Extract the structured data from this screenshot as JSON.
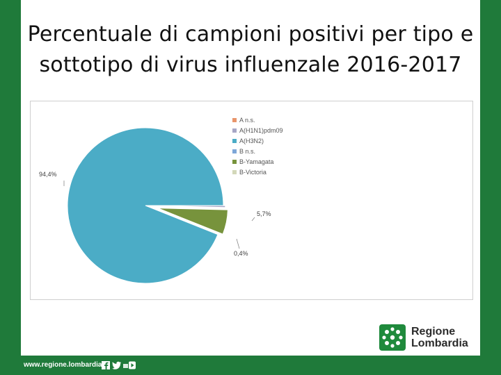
{
  "title_lines": [
    "Percentuale di campioni positivi per tipo e",
    "sottotipo di virus influenzale 2016-2017"
  ],
  "chart_data": {
    "type": "pie",
    "title": "",
    "categories": [
      "A n.s.",
      "A(H1N1)pdm09",
      "A(H3N2)",
      "B n.s.",
      "B-Yamagata",
      "B-Victoria"
    ],
    "values": [
      0,
      0.4,
      94.4,
      0,
      5.7,
      0
    ],
    "data_labels": [
      "",
      "0,4%",
      "94,4%",
      "",
      "5,7%",
      ""
    ],
    "colors": [
      "#e8956b",
      "#a6a6c6",
      "#4bacc6",
      "#7ea7d8",
      "#77933c",
      "#d3d8b9"
    ],
    "legend_position": "right",
    "exploded": true
  },
  "logo": {
    "line1": "Regione",
    "line2": "Lombardia"
  },
  "footer": {
    "url": "www.regione.lombardia.it"
  },
  "colors": {
    "background": "#1f7a3a",
    "slide": "#ffffff"
  }
}
